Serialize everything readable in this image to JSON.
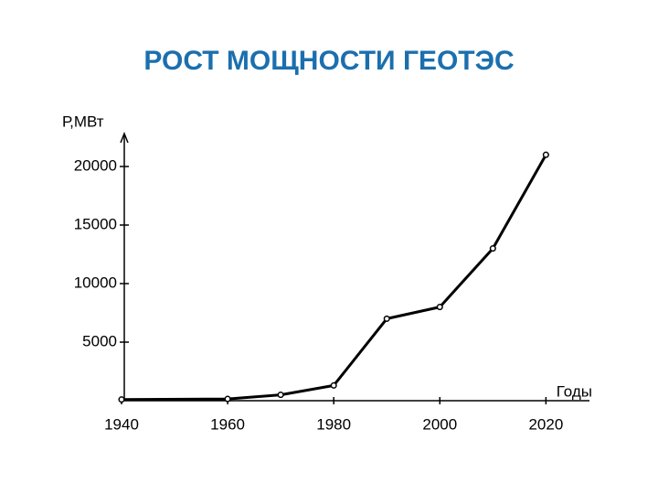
{
  "chart_data": {
    "type": "line",
    "title": "РОСТ МОЩНОСТИ ГЕОТЭС",
    "y_label": "Р,МВт",
    "x_label": "Годы",
    "x": [
      1940,
      1960,
      1970,
      1980,
      1990,
      2000,
      2010,
      2020
    ],
    "values": [
      100,
      150,
      500,
      1300,
      7000,
      8000,
      13000,
      21000
    ],
    "color": "#000000",
    "xlim": [
      1940,
      2027
    ],
    "xticks": [
      1940,
      1960,
      1980,
      2000,
      2020
    ],
    "ylim": [
      0,
      22500
    ],
    "yticks": [
      5000,
      10000,
      15000,
      20000
    ]
  }
}
